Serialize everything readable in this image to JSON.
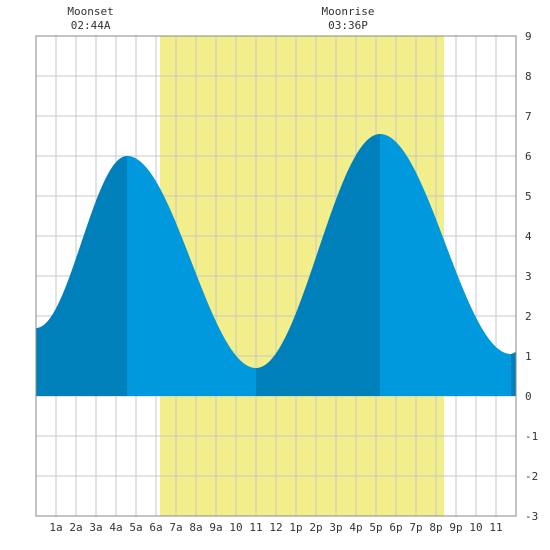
{
  "chart_data": {
    "type": "area",
    "title": "",
    "xlabel": "",
    "ylabel": "",
    "xlim": [
      0,
      24
    ],
    "ylim": [
      -3,
      9
    ],
    "grid": true,
    "x_tick_labels": [
      "1a",
      "2a",
      "3a",
      "4a",
      "5a",
      "6a",
      "7a",
      "8a",
      "9a",
      "10",
      "11",
      "12",
      "1p",
      "2p",
      "3p",
      "4p",
      "5p",
      "6p",
      "7p",
      "8p",
      "9p",
      "10",
      "11"
    ],
    "y_ticks": [
      -3,
      -2,
      -1,
      0,
      1,
      2,
      3,
      4,
      5,
      6,
      7,
      8,
      9
    ],
    "daylight": {
      "start_hour": 6.2,
      "end_hour": 20.4
    },
    "moon_events": [
      {
        "name": "Moonset",
        "time": "02:44A",
        "hour": 2.73
      },
      {
        "name": "Moonrise",
        "time": "03:36P",
        "hour": 15.6
      }
    ],
    "tide_extremes": [
      {
        "hour": 0.0,
        "height": 1.7
      },
      {
        "hour": 4.55,
        "height": 6.0
      },
      {
        "hour": 11.0,
        "height": 0.7
      },
      {
        "hour": 17.2,
        "height": 6.55
      },
      {
        "hour": 23.75,
        "height": 1.05
      },
      {
        "hour": 24.0,
        "height": 1.1
      }
    ],
    "shade_bands": [
      {
        "start_hour": 0.0,
        "end_hour": 4.55,
        "shade": "dark"
      },
      {
        "start_hour": 4.55,
        "end_hour": 11.0,
        "shade": "light"
      },
      {
        "start_hour": 11.0,
        "end_hour": 17.2,
        "shade": "dark"
      },
      {
        "start_hour": 17.2,
        "end_hour": 23.75,
        "shade": "light"
      },
      {
        "start_hour": 23.75,
        "end_hour": 24.0,
        "shade": "dark"
      }
    ],
    "colors": {
      "tide_dark": "#0080bb",
      "tide_light": "#0099dd",
      "daylight": "#f3ee8c",
      "grid": "#c8c8c8",
      "border": "#888888"
    }
  }
}
